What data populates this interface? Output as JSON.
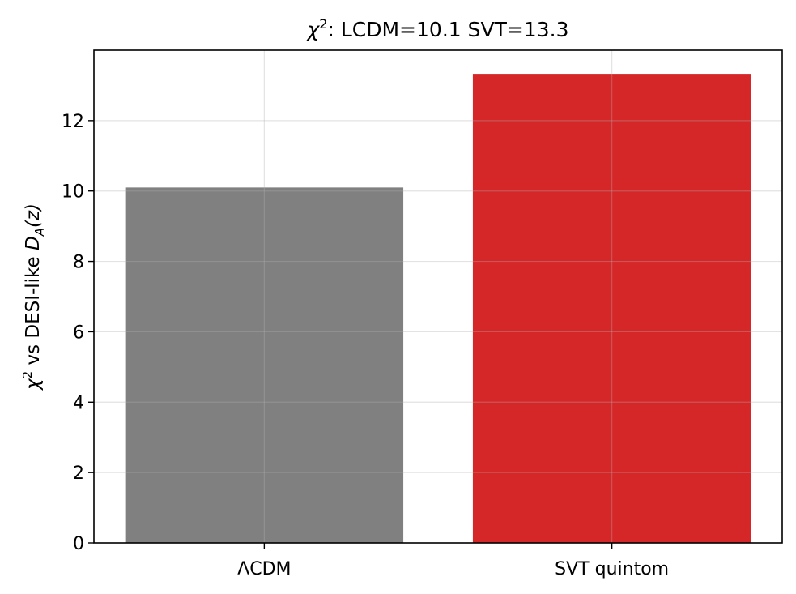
{
  "chart_data": {
    "type": "bar",
    "title": {
      "chi": "χ",
      "sup": "2",
      "rest": ": LCDM=10.1  SVT=13.3"
    },
    "ylabel": {
      "chi": "χ",
      "sup": "2",
      "mid": " vs DESI-like ",
      "D": "D",
      "sub": "A",
      "tail": "(z)"
    },
    "categories": [
      "ΛCDM",
      "SVT quintom"
    ],
    "values": [
      10.1,
      13.33
    ],
    "colors": [
      "#808080",
      "#d62728"
    ],
    "ylim": [
      0,
      14
    ],
    "yticks": [
      0,
      2,
      4,
      6,
      8,
      10,
      12
    ],
    "grid": true
  }
}
